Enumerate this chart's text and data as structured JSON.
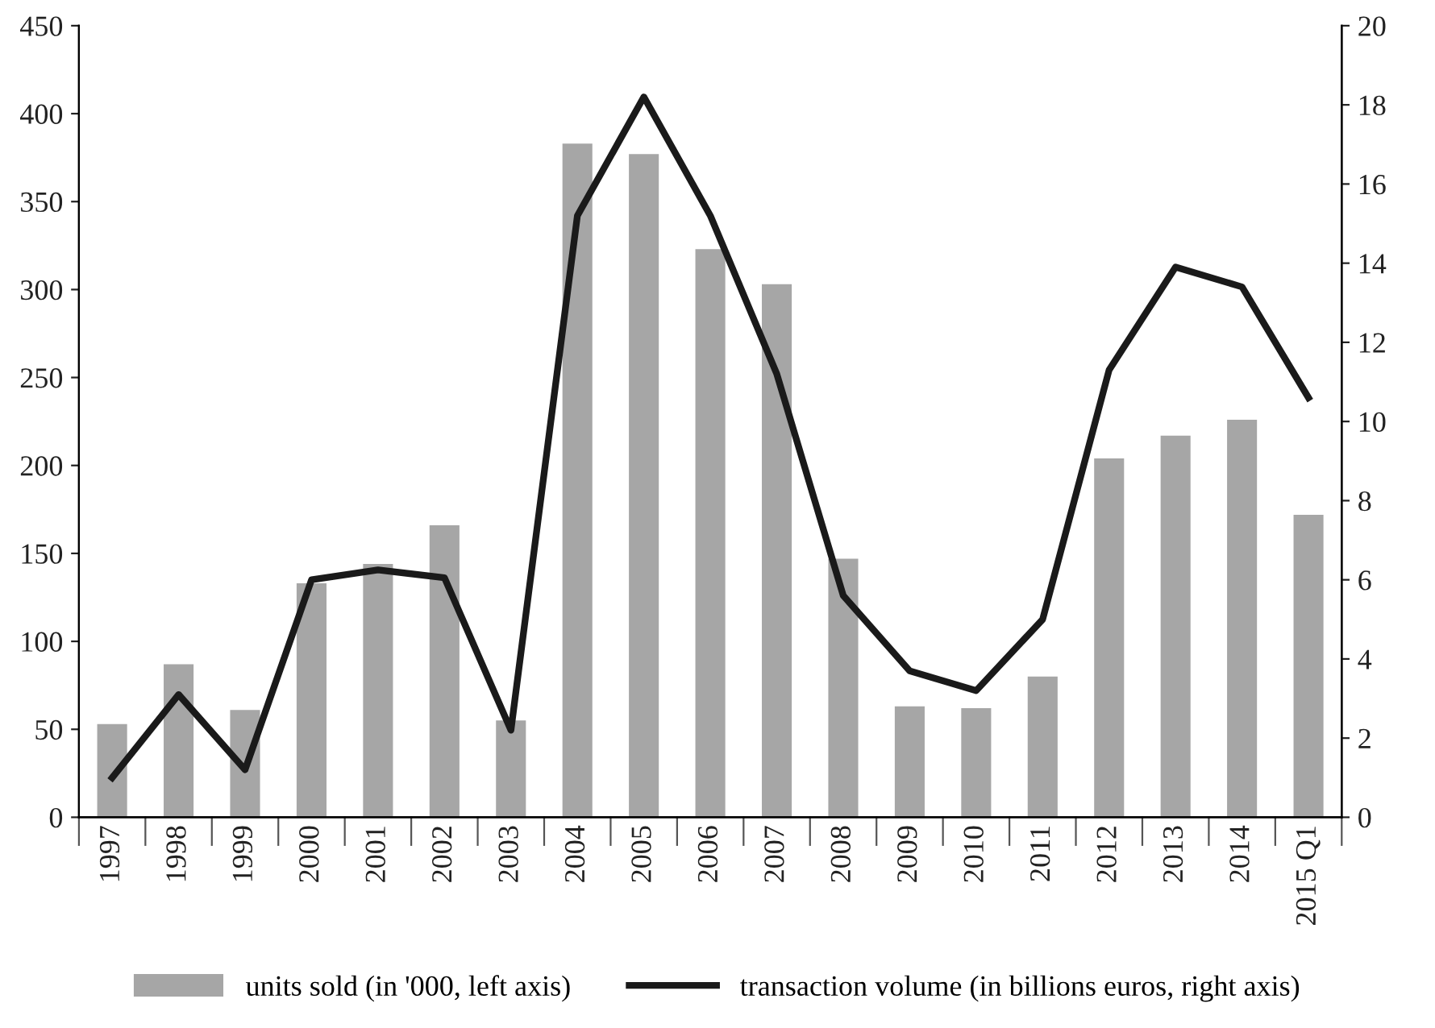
{
  "chart_data": {
    "type": "bar",
    "categories": [
      "1997",
      "1998",
      "1999",
      "2000",
      "2001",
      "2002",
      "2003",
      "2004",
      "2005",
      "2006",
      "2007",
      "2008",
      "2009",
      "2010",
      "2011",
      "2012",
      "2013",
      "2014",
      "2015 Q1"
    ],
    "series": [
      {
        "name": "units sold (in '000, left axis)",
        "color": "#a6a6a6",
        "values": [
          53,
          87,
          61,
          133,
          144,
          166,
          55,
          383,
          377,
          323,
          303,
          147,
          63,
          62,
          80,
          204,
          217,
          226,
          172
        ]
      },
      {
        "name": "transaction volume (in billions euros, right axis)",
        "type": "line",
        "axis": "y2",
        "color": "#1a1a1a",
        "values": [
          1.0,
          3.1,
          1.2,
          6.0,
          6.25,
          6.05,
          2.2,
          15.2,
          18.2,
          15.2,
          11.2,
          5.6,
          3.7,
          3.2,
          5.0,
          11.3,
          13.9,
          13.4,
          10.6
        ]
      }
    ],
    "ylim": [
      0,
      450
    ],
    "yticks": [
      0,
      50,
      100,
      150,
      200,
      250,
      300,
      350,
      400,
      450
    ],
    "y2lim": [
      0,
      20
    ],
    "y2ticks": [
      0,
      2,
      4,
      6,
      8,
      10,
      12,
      14,
      16,
      18,
      20
    ],
    "legend": "bottom",
    "grid": false,
    "marker": "none",
    "line_style": "solid"
  }
}
